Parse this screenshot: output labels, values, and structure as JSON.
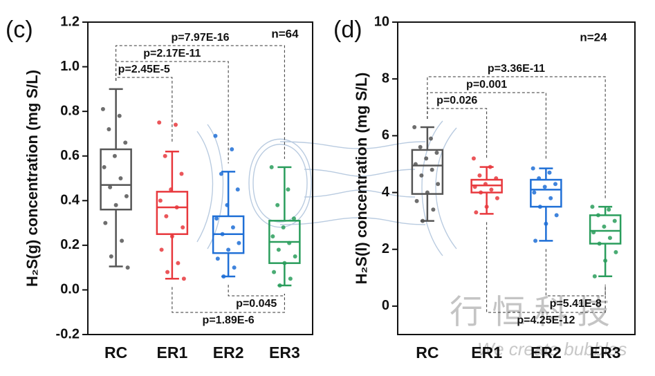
{
  "chart_data": [
    {
      "type": "box",
      "panel": "(c)",
      "y_label": "H₂S(g) concentration (mg S/L)",
      "n": "n=64",
      "categories": [
        "RC",
        "ER1",
        "ER2",
        "ER3"
      ],
      "ylim": [
        -0.2,
        1.2
      ],
      "yticks": [
        -0.2,
        {
          "value": 0,
          "label": "0.0"
        },
        0.2,
        0.4,
        0.6,
        0.8,
        {
          "value": 1,
          "label": "1.0"
        },
        1.2
      ],
      "boxes": [
        {
          "color": "#555555",
          "low": 0.105,
          "q1": 0.36,
          "median": 0.47,
          "q3": 0.63,
          "high": 0.9,
          "points": [
            0.81,
            0.78,
            0.72,
            0.66,
            0.6,
            0.55,
            0.5,
            0.46,
            0.42,
            0.38,
            0.3,
            0.22,
            0.15,
            0.1
          ]
        },
        {
          "color": "#e8383d",
          "low": 0.05,
          "q1": 0.25,
          "median": 0.37,
          "q3": 0.44,
          "high": 0.62,
          "points": [
            0.75,
            0.74,
            0.6,
            0.52,
            0.45,
            0.4,
            0.37,
            0.33,
            0.28,
            0.24,
            0.18,
            0.12,
            0.08,
            0.05
          ]
        },
        {
          "color": "#1f6fd6",
          "low": 0.06,
          "q1": 0.165,
          "median": 0.25,
          "q3": 0.33,
          "high": 0.53,
          "points": [
            0.69,
            0.63,
            0.52,
            0.45,
            0.38,
            0.32,
            0.28,
            0.25,
            0.21,
            0.18,
            0.14,
            0.1,
            0.06
          ]
        },
        {
          "color": "#2a9d5c",
          "low": 0.02,
          "q1": 0.12,
          "median": 0.215,
          "q3": 0.31,
          "high": 0.55,
          "points": [
            0.55,
            0.45,
            0.38,
            0.32,
            0.28,
            0.24,
            0.21,
            0.18,
            0.15,
            0.12,
            0.08,
            0.05,
            0.02
          ]
        }
      ],
      "comparisons": [
        {
          "groups": [
            "RC",
            "ER3"
          ],
          "label": "p=7.97E-16",
          "side": "top"
        },
        {
          "groups": [
            "RC",
            "ER2"
          ],
          "label": "p=2.17E-11",
          "side": "top"
        },
        {
          "groups": [
            "RC",
            "ER1"
          ],
          "label": "p=2.45E-5",
          "side": "top"
        },
        {
          "groups": [
            "ER2",
            "ER3"
          ],
          "label": "p=0.045",
          "side": "bottom"
        },
        {
          "groups": [
            "ER1",
            "ER3"
          ],
          "label": "p=1.89E-6",
          "side": "bottom"
        }
      ]
    },
    {
      "type": "box",
      "panel": "(d)",
      "y_label": "H₂S(l) concentration (mg S/L)",
      "n": "n=24",
      "categories": [
        "RC",
        "ER1",
        "ER2",
        "ER3"
      ],
      "ylim": [
        -1,
        10
      ],
      "yticks": [
        0,
        2,
        4,
        6,
        8,
        10
      ],
      "boxes": [
        {
          "color": "#555555",
          "low": 3.0,
          "q1": 3.95,
          "median": 4.95,
          "q3": 5.5,
          "high": 6.3,
          "points": [
            6.3,
            5.9,
            5.6,
            5.4,
            5.2,
            5.0,
            4.8,
            4.6,
            4.3,
            4.0,
            3.7,
            3.4,
            3.0
          ]
        },
        {
          "color": "#e8383d",
          "low": 3.25,
          "q1": 4.0,
          "median": 4.25,
          "q3": 4.45,
          "high": 4.9,
          "points": [
            5.2,
            4.9,
            4.6,
            4.5,
            4.3,
            4.2,
            4.1,
            4.0,
            3.8,
            3.5,
            3.3
          ]
        },
        {
          "color": "#1f6fd6",
          "low": 2.3,
          "q1": 3.5,
          "median": 4.1,
          "q3": 4.45,
          "high": 4.85,
          "points": [
            4.85,
            4.7,
            4.5,
            4.3,
            4.2,
            4.0,
            3.8,
            3.5,
            3.2,
            2.9,
            2.3
          ]
        },
        {
          "color": "#2a9d5c",
          "low": 1.05,
          "q1": 2.2,
          "median": 2.65,
          "q3": 3.2,
          "high": 3.5,
          "points": [
            3.5,
            3.4,
            3.2,
            3.0,
            2.8,
            2.6,
            2.4,
            2.2,
            1.9,
            1.6,
            1.05
          ]
        }
      ],
      "comparisons": [
        {
          "groups": [
            "RC",
            "ER3"
          ],
          "label": "p=3.36E-11",
          "side": "top"
        },
        {
          "groups": [
            "RC",
            "ER2"
          ],
          "label": "p=0.001",
          "side": "top"
        },
        {
          "groups": [
            "RC",
            "ER1"
          ],
          "label": "p=0.026",
          "side": "top"
        },
        {
          "groups": [
            "ER2",
            "ER3"
          ],
          "label": "p=5.41E-8",
          "side": "bottom"
        },
        {
          "groups": [
            "ER1",
            "ER3"
          ],
          "label": "p=4.25E-12",
          "side": "bottom"
        }
      ]
    }
  ],
  "watermark": {
    "title": "行 恒 科 技",
    "slogan": "We create bubbles"
  }
}
